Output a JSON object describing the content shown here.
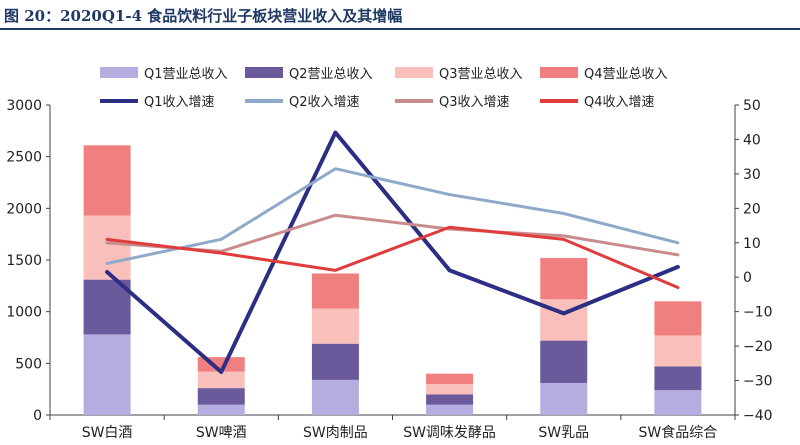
{
  "title": "图 20：2020Q1-4 食品饮料行业子板块营业收入及其增幅",
  "chart_data": {
    "type": "bar",
    "stacked": true,
    "categories": [
      "SW白酒",
      "SW啤酒",
      "SW肉制品",
      "SW调味发酵品",
      "SW乳品",
      "SW食品综合"
    ],
    "bar_series": [
      {
        "name": "Q1营业总收入",
        "color": "#b4aee0",
        "values": [
          780,
          100,
          340,
          100,
          310,
          240
        ]
      },
      {
        "name": "Q2营业总收入",
        "color": "#6a5a9c",
        "values": [
          530,
          160,
          350,
          100,
          410,
          230
        ]
      },
      {
        "name": "Q3营业总收入",
        "color": "#f9c0bb",
        "values": [
          620,
          160,
          340,
          100,
          400,
          300
        ]
      },
      {
        "name": "Q4营业总收入",
        "color": "#f08080",
        "values": [
          680,
          140,
          340,
          100,
          400,
          330
        ]
      }
    ],
    "line_series": [
      {
        "name": "Q1收入增速",
        "color": "#2b2e83",
        "values": [
          1.5,
          -27.5,
          42,
          2,
          -10.5,
          3
        ]
      },
      {
        "name": "Q2收入增速",
        "color": "#8fa9cb",
        "values": [
          4,
          11,
          31.5,
          24,
          18.5,
          10
        ]
      },
      {
        "name": "Q3收入增速",
        "color": "#c98c8c",
        "values": [
          10,
          7.5,
          18,
          14,
          12,
          6.5
        ]
      },
      {
        "name": "Q4收入增速",
        "color": "#e03c3c",
        "values": [
          11,
          7,
          2,
          14.5,
          11,
          -3
        ]
      }
    ],
    "ylim_left": [
      0,
      3000
    ],
    "yticks_left": [
      0,
      500,
      1000,
      1500,
      2000,
      2500,
      3000
    ],
    "ylim_right": [
      -40,
      50
    ],
    "yticks_right": [
      -40,
      -30,
      -20,
      -10,
      0,
      10,
      20,
      30,
      40,
      50
    ],
    "legend": "top"
  }
}
